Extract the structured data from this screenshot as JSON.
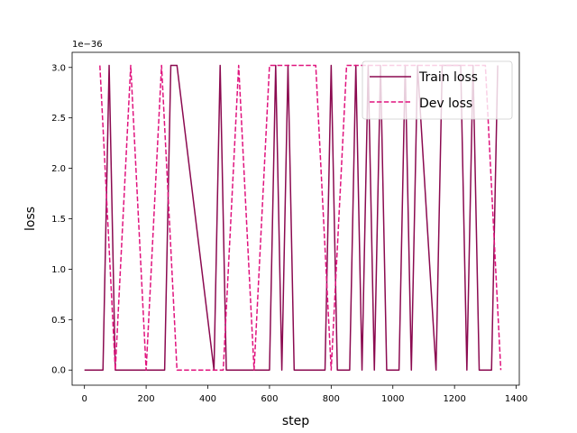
{
  "chart_data": {
    "type": "line",
    "title": "",
    "xlabel": "step",
    "ylabel": "loss",
    "offset_text": "1e−36",
    "xlim": [
      -40,
      1410
    ],
    "ylim": [
      -0.15,
      3.15
    ],
    "xticks": [
      0,
      200,
      400,
      600,
      800,
      1000,
      1200,
      1400
    ],
    "yticks": [
      0.0,
      0.5,
      1.0,
      1.5,
      2.0,
      2.5,
      3.0
    ],
    "xtick_labels": [
      "0",
      "200",
      "400",
      "600",
      "800",
      "1000",
      "1200",
      "1400"
    ],
    "ytick_labels": [
      "0.0",
      "0.5",
      "1.0",
      "1.5",
      "2.0",
      "2.5",
      "3.0"
    ],
    "grid": false,
    "legend_position": "upper right",
    "series": [
      {
        "name": "Train loss",
        "color": "#8b0a50",
        "style": "solid",
        "x": [
          0,
          60,
          80,
          100,
          260,
          280,
          300,
          420,
          440,
          460,
          600,
          620,
          640,
          660,
          680,
          780,
          800,
          820,
          860,
          880,
          900,
          920,
          940,
          960,
          980,
          1020,
          1040,
          1060,
          1080,
          1140,
          1160,
          1180,
          1200,
          1220,
          1240,
          1260,
          1280,
          1320,
          1340
        ],
        "y": [
          0,
          0,
          3.02,
          0,
          0,
          3.02,
          3.02,
          0,
          3.02,
          0,
          0,
          3.02,
          0,
          3.02,
          0,
          0,
          3.02,
          0,
          0,
          3.02,
          0,
          3.02,
          0,
          3.02,
          0,
          0,
          3.02,
          0,
          3.02,
          0,
          3.02,
          3.02,
          3.02,
          3.02,
          0,
          3.02,
          0,
          0,
          3.02
        ]
      },
      {
        "name": "Dev loss",
        "color": "#e0147e",
        "style": "dashed",
        "x": [
          50,
          100,
          150,
          200,
          250,
          300,
          450,
          500,
          550,
          600,
          650,
          750,
          800,
          850,
          900,
          950,
          1000,
          1050,
          1100,
          1150,
          1200,
          1250,
          1300,
          1350
        ],
        "y": [
          3.02,
          0,
          3.02,
          0,
          3.02,
          0,
          0,
          3.02,
          0,
          3.02,
          3.02,
          3.02,
          0,
          3.02,
          3.02,
          3.02,
          3.02,
          3.02,
          3.02,
          3.02,
          3.02,
          3.02,
          3.02,
          0
        ]
      }
    ]
  }
}
